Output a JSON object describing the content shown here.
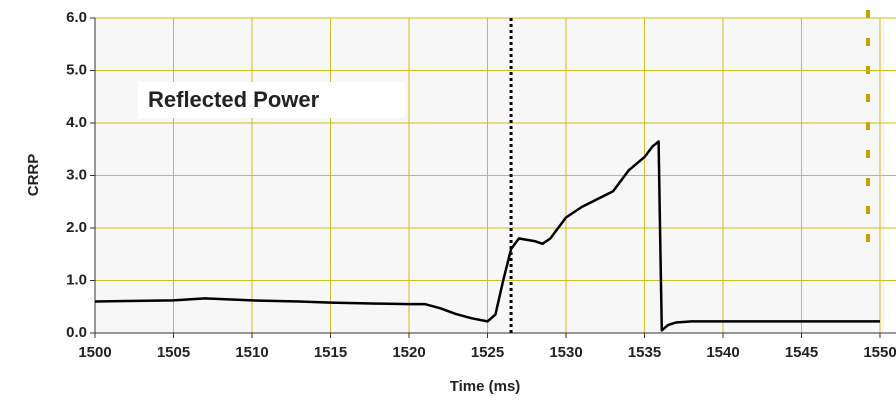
{
  "chart_data": {
    "type": "line",
    "annotation": "Reflected Power",
    "xlabel": "Time (ms)",
    "ylabel": "CRRP",
    "x": [
      1500,
      1502,
      1505,
      1507,
      1510,
      1513,
      1515,
      1518,
      1520,
      1521,
      1522,
      1523,
      1524,
      1525,
      1525.5,
      1526,
      1526.5,
      1527,
      1528,
      1528.5,
      1529,
      1530,
      1531,
      1532,
      1533,
      1534,
      1535,
      1535.5,
      1535.9,
      1536,
      1536.1,
      1536.5,
      1537,
      1538,
      1542,
      1546,
      1550
    ],
    "series": [
      {
        "name": "CRRP",
        "color": "#000000",
        "values": [
          0.6,
          0.61,
          0.62,
          0.66,
          0.62,
          0.6,
          0.58,
          0.56,
          0.55,
          0.55,
          0.47,
          0.36,
          0.28,
          0.22,
          0.35,
          1.0,
          1.6,
          1.8,
          1.75,
          1.7,
          1.8,
          2.2,
          2.4,
          2.55,
          2.7,
          3.1,
          3.35,
          3.55,
          3.65,
          1.8,
          0.05,
          0.15,
          0.2,
          0.22,
          0.22,
          0.22,
          0.22
        ]
      }
    ],
    "vlines": [
      1526.5
    ],
    "xlim": [
      1500,
      1550
    ],
    "xticks": [
      1500,
      1505,
      1510,
      1515,
      1520,
      1525,
      1530,
      1535,
      1540,
      1545,
      1550
    ],
    "ylim": [
      0,
      6
    ],
    "yticks": [
      {
        "value": 0,
        "label": "0.0"
      },
      {
        "value": 1,
        "label": "1.0"
      },
      {
        "value": 2,
        "label": "2.0"
      },
      {
        "value": 3,
        "label": "3.0"
      },
      {
        "value": 4,
        "label": "4.0"
      },
      {
        "value": 5,
        "label": "5.0"
      },
      {
        "value": 6,
        "label": "6.0"
      }
    ],
    "grid": true,
    "grid_color": "#c8c21e"
  }
}
